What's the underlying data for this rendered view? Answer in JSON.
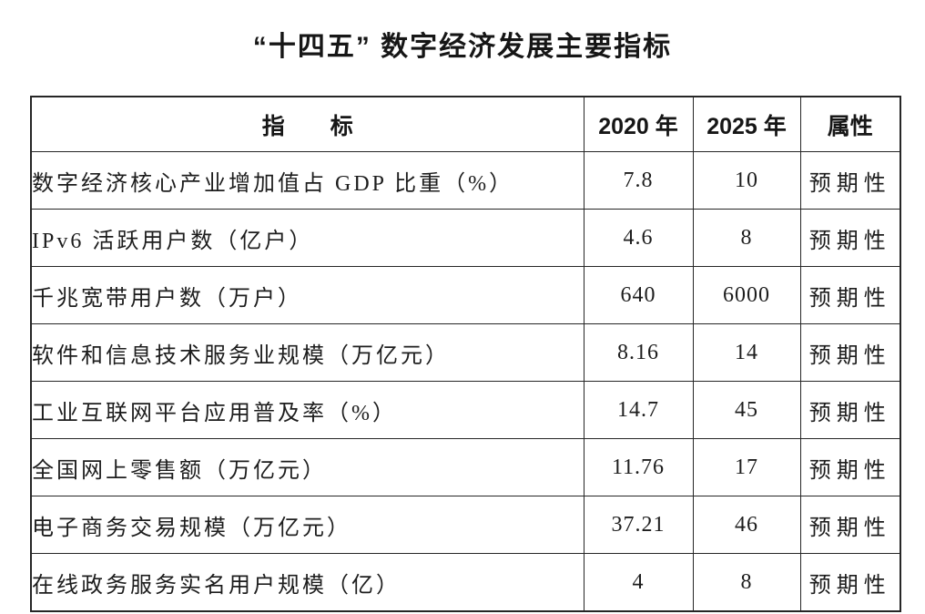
{
  "title": "“十四五”  数字经济发展主要指标",
  "table": {
    "headers": {
      "indicator": "指　　标",
      "y2020": "2020 年",
      "y2025": "2025 年",
      "attribute": "属性"
    },
    "rows": [
      {
        "indicator": "数字经济核心产业增加值占 GDP 比重（%）",
        "y2020": "7.8",
        "y2025": "10",
        "attribute": "预期性"
      },
      {
        "indicator": "IPv6 活跃用户数（亿户）",
        "y2020": "4.6",
        "y2025": "8",
        "attribute": "预期性"
      },
      {
        "indicator": "千兆宽带用户数（万户）",
        "y2020": "640",
        "y2025": "6000",
        "attribute": "预期性"
      },
      {
        "indicator": "软件和信息技术服务业规模（万亿元）",
        "y2020": "8.16",
        "y2025": "14",
        "attribute": "预期性"
      },
      {
        "indicator": "工业互联网平台应用普及率（%）",
        "y2020": "14.7",
        "y2025": "45",
        "attribute": "预期性"
      },
      {
        "indicator": "全国网上零售额（万亿元）",
        "y2020": "11.76",
        "y2025": "17",
        "attribute": "预期性"
      },
      {
        "indicator": "电子商务交易规模（万亿元）",
        "y2020": "37.21",
        "y2025": "46",
        "attribute": "预期性"
      },
      {
        "indicator": "在线政务服务实名用户规模（亿）",
        "y2020": "4",
        "y2025": "8",
        "attribute": "预期性"
      }
    ]
  }
}
